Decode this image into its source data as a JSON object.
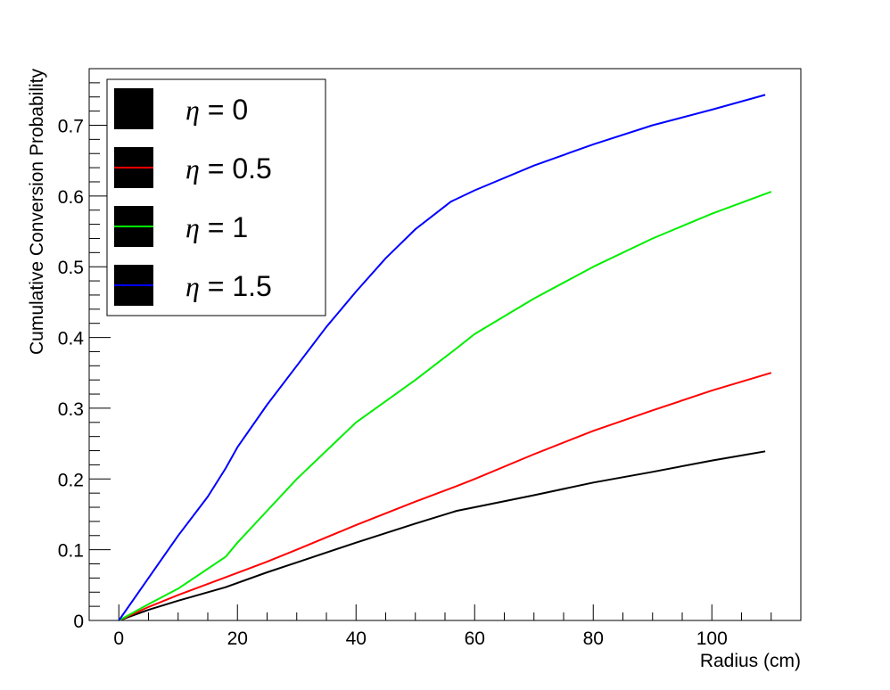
{
  "chart_data": {
    "type": "line",
    "xlabel": "Radius (cm)",
    "ylabel": "Cumulative Conversion Probability",
    "xlim": [
      -5,
      115
    ],
    "ylim": [
      0,
      0.78
    ],
    "x_ticks": [
      0,
      20,
      40,
      60,
      80,
      100
    ],
    "x_tick_labels": [
      "0",
      "20",
      "40",
      "60",
      "80",
      "100"
    ],
    "y_ticks": [
      0,
      0.1,
      0.2,
      0.3,
      0.4,
      0.5,
      0.6,
      0.7
    ],
    "y_tick_labels": [
      "0",
      "0.1",
      "0.2",
      "0.3",
      "0.4",
      "0.5",
      "0.6",
      "0.7"
    ],
    "grid": false,
    "legend_position": "top-left",
    "series": [
      {
        "name": "η = 0",
        "legend_var": "η",
        "legend_rest": " = 0",
        "color": "#000000",
        "points": [
          [
            0,
            0
          ],
          [
            5,
            0.015
          ],
          [
            10,
            0.028
          ],
          [
            18,
            0.047
          ],
          [
            25,
            0.068
          ],
          [
            30,
            0.082
          ],
          [
            40,
            0.11
          ],
          [
            50,
            0.137
          ],
          [
            57,
            0.155
          ],
          [
            60,
            0.16
          ],
          [
            70,
            0.177
          ],
          [
            80,
            0.195
          ],
          [
            90,
            0.21
          ],
          [
            100,
            0.226
          ],
          [
            109,
            0.239
          ]
        ]
      },
      {
        "name": "η = 0.5",
        "legend_var": "η",
        "legend_rest": " = 0.5",
        "color": "#ff0000",
        "points": [
          [
            0,
            0
          ],
          [
            5,
            0.019
          ],
          [
            10,
            0.036
          ],
          [
            18,
            0.061
          ],
          [
            25,
            0.083
          ],
          [
            30,
            0.1
          ],
          [
            40,
            0.135
          ],
          [
            50,
            0.168
          ],
          [
            57,
            0.19
          ],
          [
            60,
            0.2
          ],
          [
            70,
            0.235
          ],
          [
            80,
            0.268
          ],
          [
            90,
            0.297
          ],
          [
            100,
            0.325
          ],
          [
            110,
            0.35
          ]
        ]
      },
      {
        "name": "η = 1",
        "legend_var": "η",
        "legend_rest": " = 1",
        "color": "#00ee00",
        "points": [
          [
            0,
            0
          ],
          [
            5,
            0.023
          ],
          [
            10,
            0.045
          ],
          [
            18,
            0.09
          ],
          [
            20,
            0.11
          ],
          [
            25,
            0.155
          ],
          [
            30,
            0.2
          ],
          [
            40,
            0.28
          ],
          [
            50,
            0.34
          ],
          [
            57,
            0.385
          ],
          [
            60,
            0.405
          ],
          [
            70,
            0.455
          ],
          [
            80,
            0.5
          ],
          [
            90,
            0.54
          ],
          [
            100,
            0.575
          ],
          [
            110,
            0.606
          ]
        ]
      },
      {
        "name": "η = 1.5",
        "legend_var": "η",
        "legend_rest": " = 1.5",
        "color": "#0000ff",
        "points": [
          [
            0,
            0
          ],
          [
            5,
            0.06
          ],
          [
            10,
            0.12
          ],
          [
            15,
            0.175
          ],
          [
            18,
            0.215
          ],
          [
            20,
            0.245
          ],
          [
            25,
            0.305
          ],
          [
            30,
            0.36
          ],
          [
            35,
            0.415
          ],
          [
            40,
            0.465
          ],
          [
            45,
            0.512
          ],
          [
            50,
            0.553
          ],
          [
            56,
            0.592
          ],
          [
            60,
            0.608
          ],
          [
            70,
            0.643
          ],
          [
            80,
            0.673
          ],
          [
            90,
            0.7
          ],
          [
            100,
            0.722
          ],
          [
            109,
            0.743
          ]
        ]
      }
    ]
  }
}
